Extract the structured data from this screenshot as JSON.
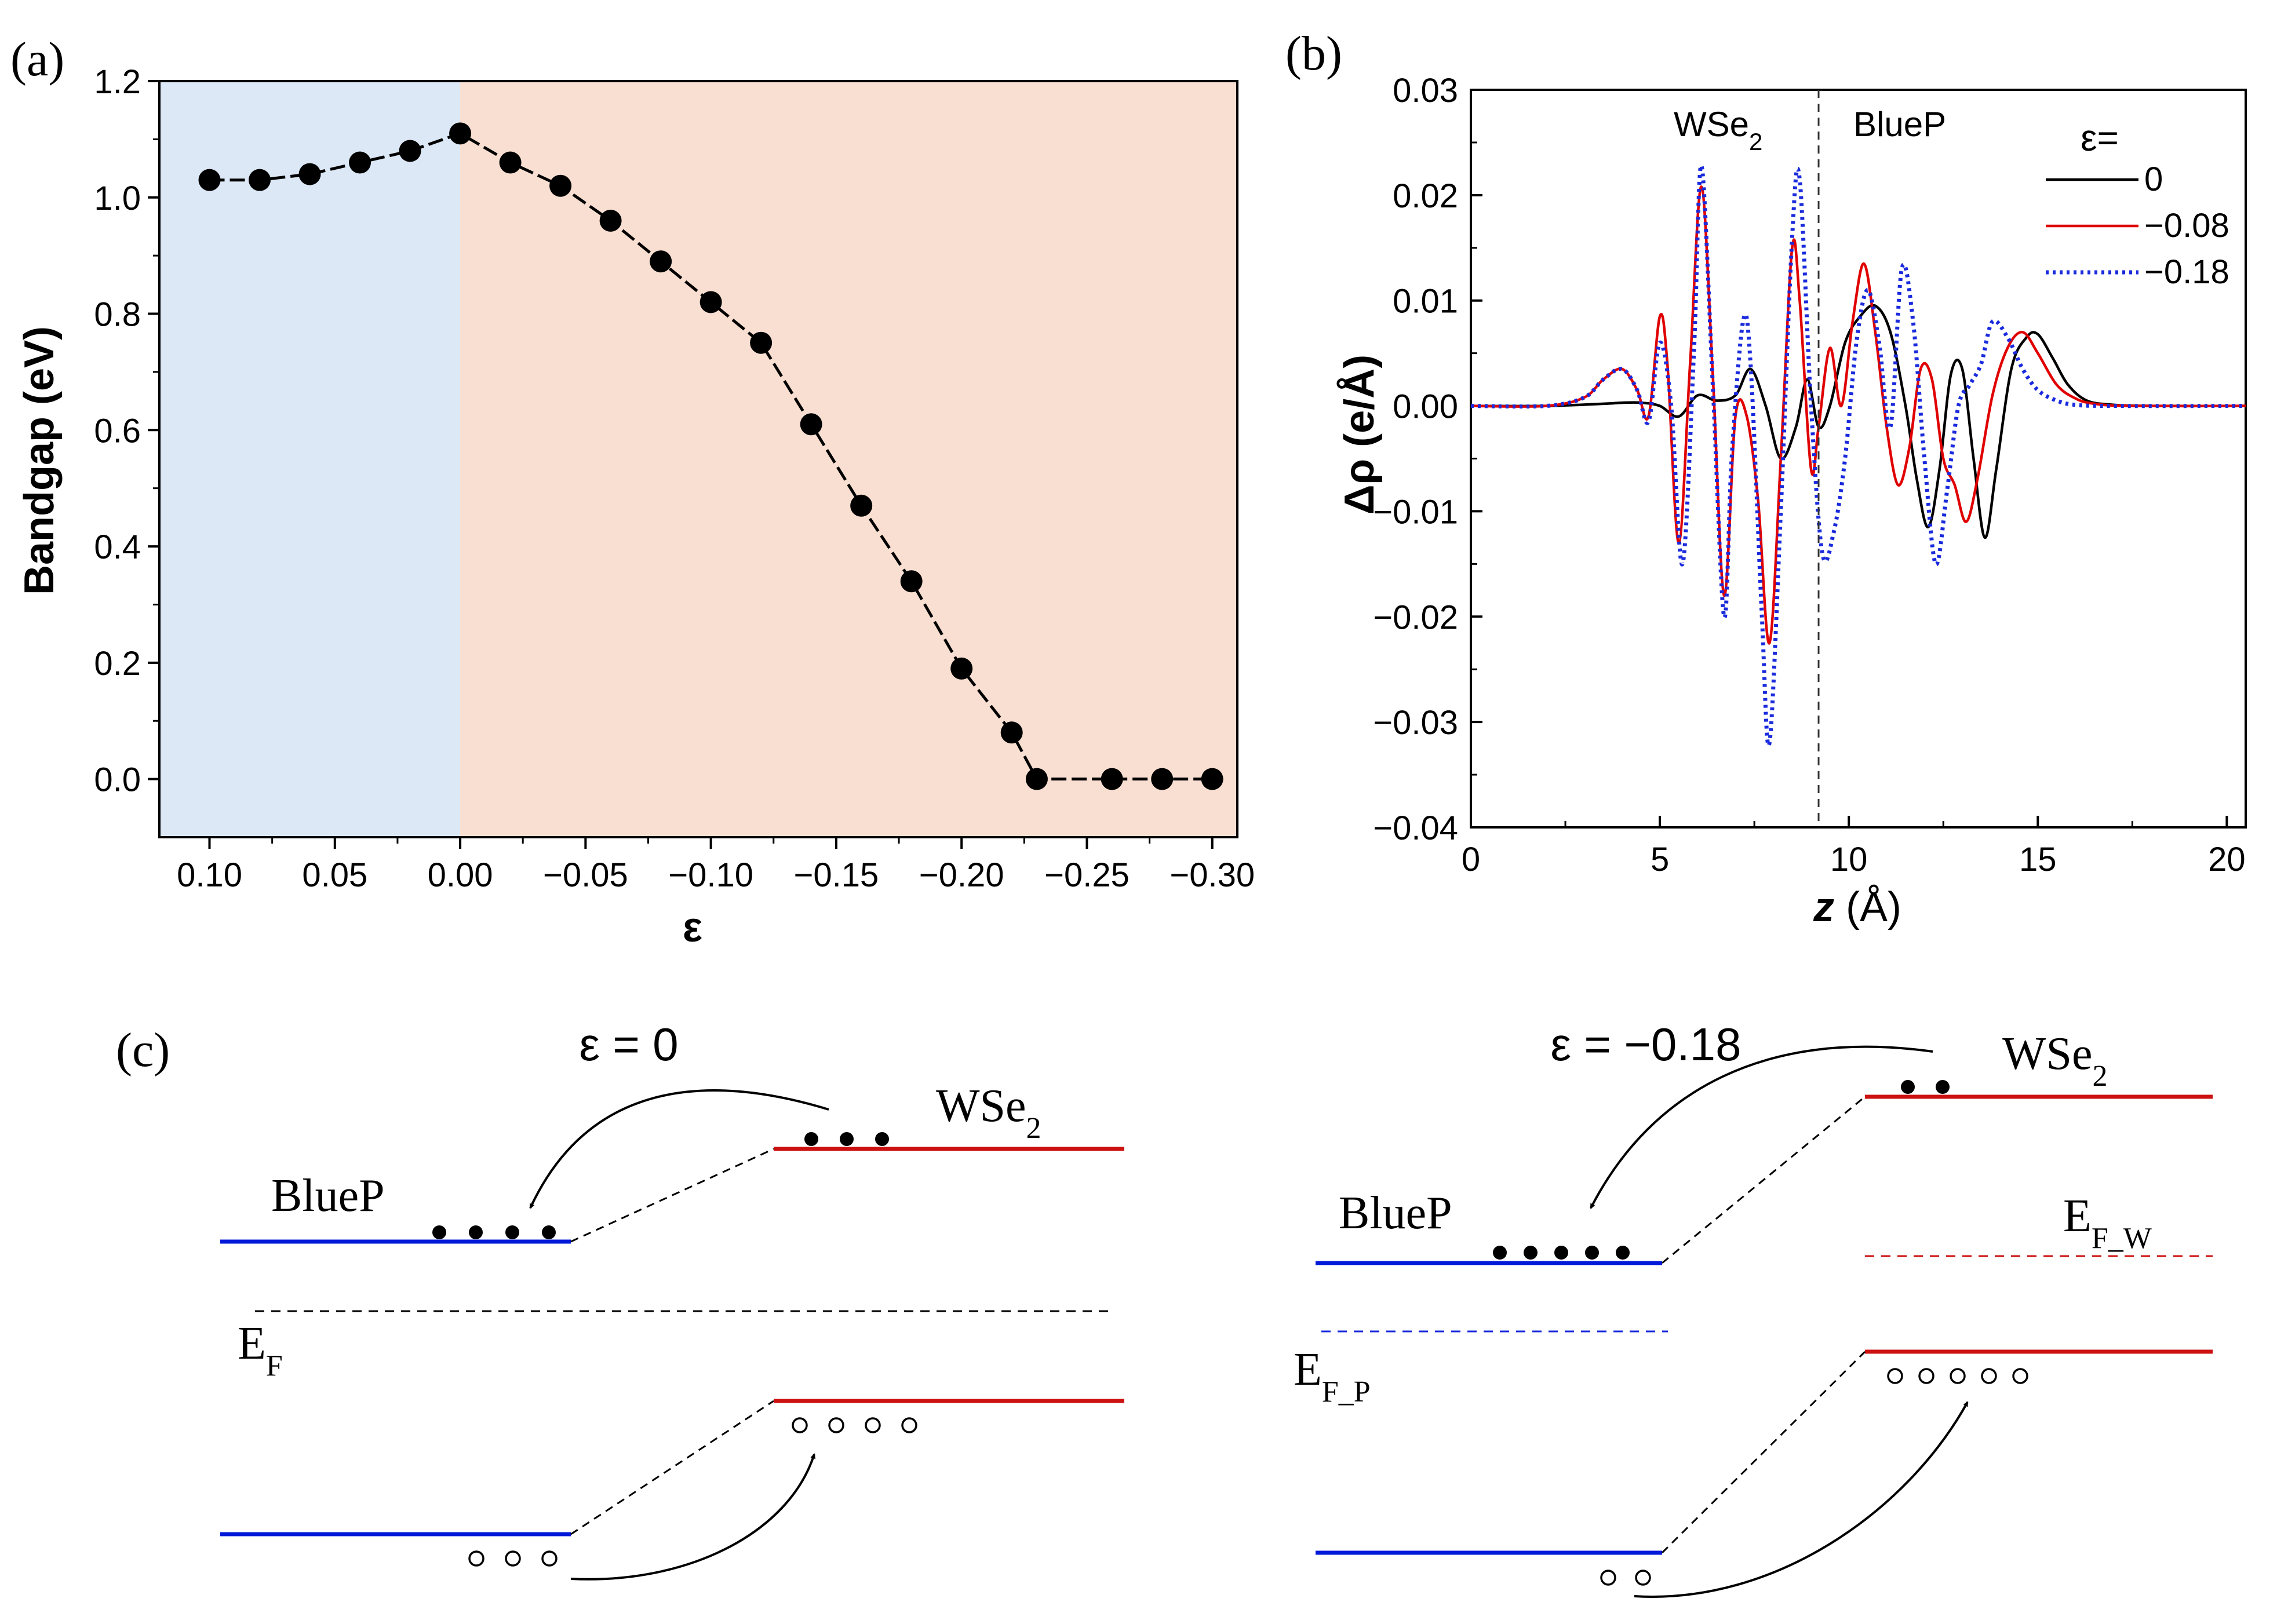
{
  "colors": {
    "text": "#000000",
    "blue_region": "#dce8f5",
    "orange_region": "#f8dfd1",
    "red_curve": "#e00000",
    "blue_curve": "#1a2adc",
    "blue_band": "#0018d8",
    "red_band": "#cc1111",
    "black": "#000000"
  },
  "panel_labels": {
    "a": "(a)",
    "b": "(b)",
    "c": "(c)"
  },
  "chart_data": [
    {
      "id": "a",
      "type": "line",
      "xlabel": "ε",
      "ylabel": "Bandgap (eV)",
      "xlim": [
        0.12,
        -0.31
      ],
      "ylim": [
        -0.1,
        1.2
      ],
      "x_ticks": [
        0.1,
        0.05,
        0.0,
        -0.05,
        -0.1,
        -0.15,
        -0.2,
        -0.25,
        -0.3
      ],
      "x_tick_labels": [
        "0.10",
        "0.05",
        "0.00",
        "−0.05",
        "−0.10",
        "−0.15",
        "−0.20",
        "−0.25",
        "−0.30"
      ],
      "y_ticks": [
        0.0,
        0.2,
        0.4,
        0.6,
        0.8,
        1.0,
        1.2
      ],
      "y_tick_labels": [
        "0.0",
        "0.2",
        "0.4",
        "0.6",
        "0.8",
        "1.0",
        "1.2"
      ],
      "regions": [
        {
          "from": 0.12,
          "to": 0.0,
          "color": "#dce8f5"
        },
        {
          "from": 0.0,
          "to": -0.31,
          "color": "#f8dfd1"
        }
      ],
      "x": [
        0.1,
        0.08,
        0.06,
        0.04,
        0.02,
        0.0,
        -0.02,
        -0.04,
        -0.06,
        -0.08,
        -0.1,
        -0.12,
        -0.14,
        -0.16,
        -0.18,
        -0.2,
        -0.22,
        -0.23,
        -0.26,
        -0.28,
        -0.3
      ],
      "y": [
        1.03,
        1.03,
        1.04,
        1.06,
        1.08,
        1.11,
        1.06,
        1.02,
        0.96,
        0.89,
        0.82,
        0.75,
        0.61,
        0.47,
        0.34,
        0.19,
        0.08,
        0.0,
        0.0,
        0.0,
        0.0
      ],
      "grid": false
    },
    {
      "id": "b",
      "type": "line",
      "xlabel_italic": "z",
      "xlabel_rest": " (Å)",
      "ylabel": "Δρ (e/Å)",
      "xlim": [
        0,
        20.5
      ],
      "ylim": [
        -0.04,
        0.03
      ],
      "x_ticks": [
        0,
        5,
        10,
        15,
        20
      ],
      "x_tick_labels": [
        "0",
        "5",
        "10",
        "15",
        "20"
      ],
      "y_ticks": [
        -0.04,
        -0.03,
        -0.02,
        -0.01,
        0.0,
        0.01,
        0.02,
        0.03
      ],
      "y_tick_labels": [
        "−0.04",
        "−0.03",
        "−0.02",
        "−0.01",
        "0.00",
        "0.01",
        "0.02",
        "0.03"
      ],
      "divider_x": 9.2,
      "region_labels": {
        "left_main": "WSe",
        "left_sub": "2",
        "right": "BlueP"
      },
      "legend_title": "ε=",
      "legend_position": "top-right",
      "grid": false,
      "series": [
        {
          "name": "0",
          "color": "#000000",
          "dash": "solid",
          "x": [
            0,
            2.0,
            3.5,
            4.0,
            4.5,
            5.0,
            5.5,
            6.0,
            6.5,
            7.0,
            7.4,
            7.8,
            8.2,
            8.6,
            8.9,
            9.2,
            9.5,
            9.9,
            10.3,
            10.7,
            11.1,
            11.5,
            11.8,
            12.1,
            12.4,
            12.7,
            13.0,
            13.3,
            13.6,
            13.9,
            14.3,
            14.7,
            15.0,
            15.4,
            15.8,
            16.3,
            17.0,
            18.0,
            20.5
          ],
          "y": [
            0,
            0,
            0.0002,
            0.0003,
            0.0003,
            0,
            -0.001,
            0.001,
            0.0005,
            0.001,
            0.0035,
            0.0,
            -0.005,
            -0.002,
            0.0025,
            -0.002,
            0.0,
            0.006,
            0.0085,
            0.0095,
            0.007,
            0.0,
            -0.007,
            -0.0115,
            -0.006,
            0.003,
            0.0035,
            -0.005,
            -0.0125,
            -0.006,
            0.0035,
            0.0065,
            0.0068,
            0.0045,
            0.002,
            0.0005,
            0.0001,
            0,
            0
          ]
        },
        {
          "name": "−0.08",
          "color": "#e00000",
          "dash": "solid",
          "x": [
            0,
            2.0,
            3.0,
            3.5,
            4.0,
            4.4,
            4.7,
            5.0,
            5.2,
            5.5,
            5.8,
            6.1,
            6.4,
            6.7,
            7.0,
            7.3,
            7.6,
            7.9,
            8.2,
            8.5,
            8.7,
            9.0,
            9.2,
            9.5,
            9.8,
            10.1,
            10.4,
            10.7,
            11.0,
            11.3,
            11.6,
            11.9,
            12.2,
            12.5,
            12.8,
            13.1,
            13.4,
            13.8,
            14.2,
            14.6,
            15.0,
            15.5,
            16.0,
            16.5,
            17.5,
            20.5
          ],
          "y": [
            0,
            0,
            0.0008,
            0.0025,
            0.0035,
            0.0015,
            -0.001,
            0.0085,
            0.004,
            -0.013,
            0.004,
            0.0208,
            0.003,
            -0.018,
            -0.001,
            -0.001,
            -0.009,
            -0.0225,
            -0.005,
            0.015,
            0.01,
            -0.006,
            -0.002,
            0.0055,
            0.0,
            0.008,
            0.0135,
            0.007,
            -0.002,
            -0.0075,
            -0.004,
            0.0035,
            0.0025,
            -0.005,
            -0.0075,
            -0.011,
            -0.007,
            0.001,
            0.0055,
            0.007,
            0.005,
            0.002,
            0.0007,
            0.0002,
            0,
            0
          ]
        },
        {
          "name": "−0.18",
          "color": "#1a2adc",
          "dash": "dotted",
          "x": [
            0,
            2.0,
            3.0,
            3.5,
            4.0,
            4.4,
            4.7,
            5.0,
            5.3,
            5.6,
            5.9,
            6.1,
            6.4,
            6.7,
            6.9,
            7.2,
            7.4,
            7.7,
            7.9,
            8.2,
            8.5,
            8.7,
            9.0,
            9.3,
            9.6,
            9.9,
            10.2,
            10.5,
            10.8,
            11.1,
            11.4,
            11.7,
            12.0,
            12.3,
            12.6,
            12.9,
            13.2,
            13.5,
            13.8,
            14.2,
            14.6,
            15.0,
            15.5,
            16.0,
            17.0,
            20.5
          ],
          "y": [
            0,
            0,
            0.0008,
            0.0025,
            0.0035,
            0.0015,
            -0.0015,
            0.006,
            0.0,
            -0.015,
            0.005,
            0.0228,
            0.002,
            -0.02,
            -0.005,
            0.008,
            0.004,
            -0.02,
            -0.032,
            -0.01,
            0.016,
            0.0215,
            0.0,
            -0.014,
            -0.012,
            -0.005,
            0.006,
            0.011,
            0.006,
            -0.002,
            0.013,
            0.008,
            -0.005,
            -0.015,
            -0.008,
            0.0,
            0.002,
            0.004,
            0.008,
            0.0065,
            0.0035,
            0.0015,
            0.0005,
            0.0001,
            0,
            0
          ]
        }
      ]
    }
  ],
  "panel_c": {
    "left": {
      "title": "ε = 0",
      "bluep_label": "BlueP",
      "wse2_label_main": "WSe",
      "wse2_label_sub": "2",
      "ef_label_main": "E",
      "ef_label_sub": "F",
      "electrons_bluep": 4,
      "electrons_wse2": 3,
      "holes_wse2": 4,
      "holes_bluep": 3
    },
    "right": {
      "title": "ε = −0.18",
      "bluep_label": "BlueP",
      "wse2_label_main": "WSe",
      "wse2_label_sub": "2",
      "efp_label_main": "E",
      "efp_label_sub": "F_P",
      "efw_label_main": "E",
      "efw_label_sub": "F_W",
      "electrons_bluep": 5,
      "electrons_wse2": 2,
      "holes_wse2": 5,
      "holes_bluep": 2
    }
  }
}
